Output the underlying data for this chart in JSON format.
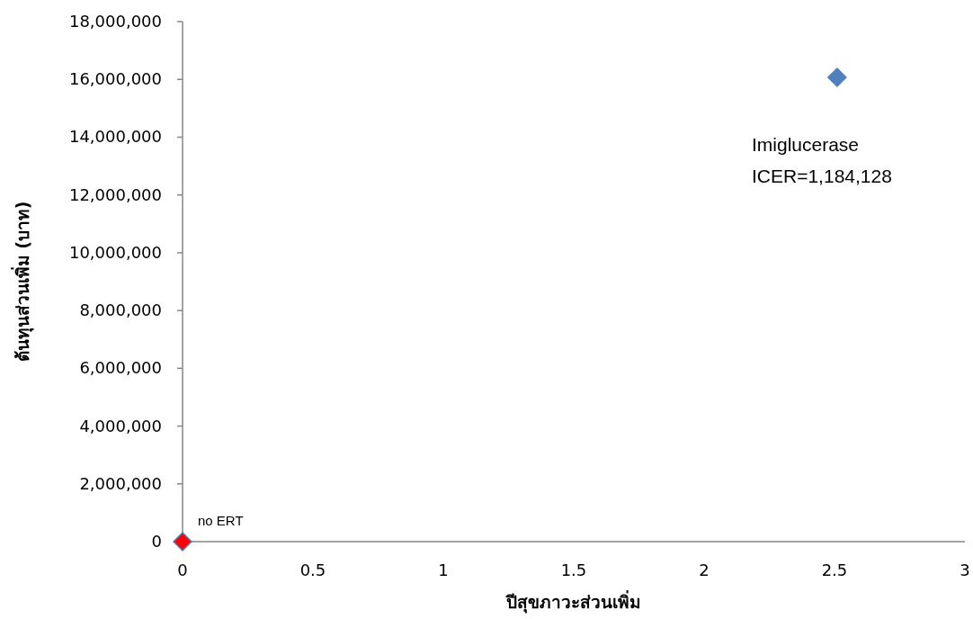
{
  "chart_data": {
    "type": "scatter",
    "xlabel": "ปีสุขภาวะส่วนเพิ่ม",
    "ylabel": "ต้นทุนส่วนเพิ่ม (บาท)",
    "xlim": [
      0,
      3
    ],
    "xticks": [
      0,
      0.5,
      1,
      1.5,
      2,
      2.5,
      3
    ],
    "ylim": [
      0,
      18000000
    ],
    "yticks": [
      {
        "value": 0,
        "label": "0"
      },
      {
        "value": 2000000,
        "label": "2,000,000"
      },
      {
        "value": 4000000,
        "label": "4,000,000"
      },
      {
        "value": 6000000,
        "label": "6,000,000"
      },
      {
        "value": 8000000,
        "label": "8,000,000"
      },
      {
        "value": 10000000,
        "label": "10,000,000"
      },
      {
        "value": 12000000,
        "label": "12,000,000"
      },
      {
        "value": 14000000,
        "label": "14,000,000"
      },
      {
        "value": 16000000,
        "label": "16,000,000"
      },
      {
        "value": 18000000,
        "label": "18,000,000"
      }
    ],
    "marker": "diamond",
    "grid": false,
    "series": [
      {
        "color": "#4f81bd",
        "x": [
          2.51
        ],
        "values": [
          16070000
        ]
      },
      {
        "name": "no ERT",
        "color": "#ff0000",
        "x": [
          0
        ],
        "values": [
          0
        ]
      }
    ],
    "annotations": [
      "Imiglucerase",
      "ICER=1,184,128"
    ]
  }
}
